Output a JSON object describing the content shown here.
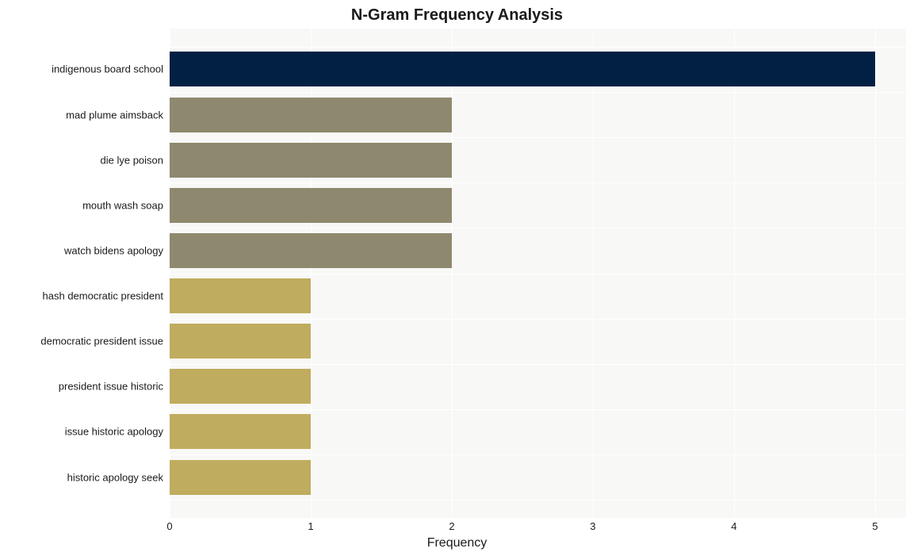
{
  "chart": {
    "type": "bar-horizontal",
    "title": "N-Gram Frequency Analysis",
    "title_fontsize": 20,
    "xlabel": "Frequency",
    "xlabel_fontsize": 16,
    "ylabel_fontsize": 13,
    "xtick_fontsize": 13,
    "background_color": "#ffffff",
    "plot_bg_color": "#f8f8f6",
    "grid_color": "#ffffff",
    "xlim": [
      0,
      5.22
    ],
    "xtick_step": 1,
    "xticks": [
      "0",
      "1",
      "2",
      "3",
      "4",
      "5"
    ],
    "bar_height_ratio": 0.77,
    "categories": [
      "indigenous board school",
      "mad plume aimsback",
      "die lye poison",
      "mouth wash soap",
      "watch bidens apology",
      "hash democratic president",
      "democratic president issue",
      "president issue historic",
      "issue historic apology",
      "historic apology seek"
    ],
    "values": [
      5,
      2,
      2,
      2,
      2,
      1,
      1,
      1,
      1,
      1
    ],
    "bar_colors": [
      "#022044",
      "#8e896e",
      "#8e896e",
      "#8e896e",
      "#8e896e",
      "#c0ac5f",
      "#c0ac5f",
      "#c0ac5f",
      "#c0ac5f",
      "#c0ac5f"
    ]
  }
}
